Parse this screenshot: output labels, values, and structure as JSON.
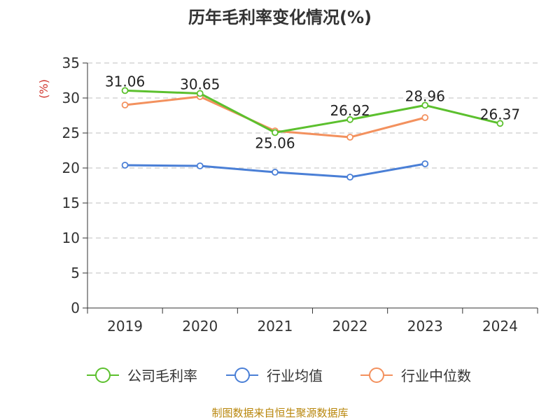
{
  "chart_data": {
    "type": "line",
    "title": "历年毛利率变化情况(%)",
    "ylabel": "(%)",
    "xlabel": "",
    "categories": [
      "2019",
      "2020",
      "2021",
      "2022",
      "2023",
      "2024"
    ],
    "ylim": [
      0,
      35
    ],
    "yticks": [
      0,
      5,
      10,
      15,
      20,
      25,
      30,
      35
    ],
    "grid": true,
    "legend_position": "bottom",
    "series": [
      {
        "name": "公司毛利率",
        "color": "#5cc02e",
        "values": [
          31.06,
          30.65,
          25.06,
          26.92,
          28.96,
          26.37
        ],
        "labels": [
          "31.06",
          "30.65",
          "25.06",
          "26.92",
          "28.96",
          "26.37"
        ]
      },
      {
        "name": "行业均值",
        "color": "#4a7fd6",
        "values": [
          20.4,
          20.3,
          19.4,
          18.7,
          20.6,
          null
        ],
        "labels": []
      },
      {
        "name": "行业中位数",
        "color": "#f3915e",
        "values": [
          29.0,
          30.2,
          25.3,
          24.4,
          27.2,
          null
        ],
        "labels": []
      }
    ]
  },
  "source": "制图数据来自恒生聚源数据库"
}
